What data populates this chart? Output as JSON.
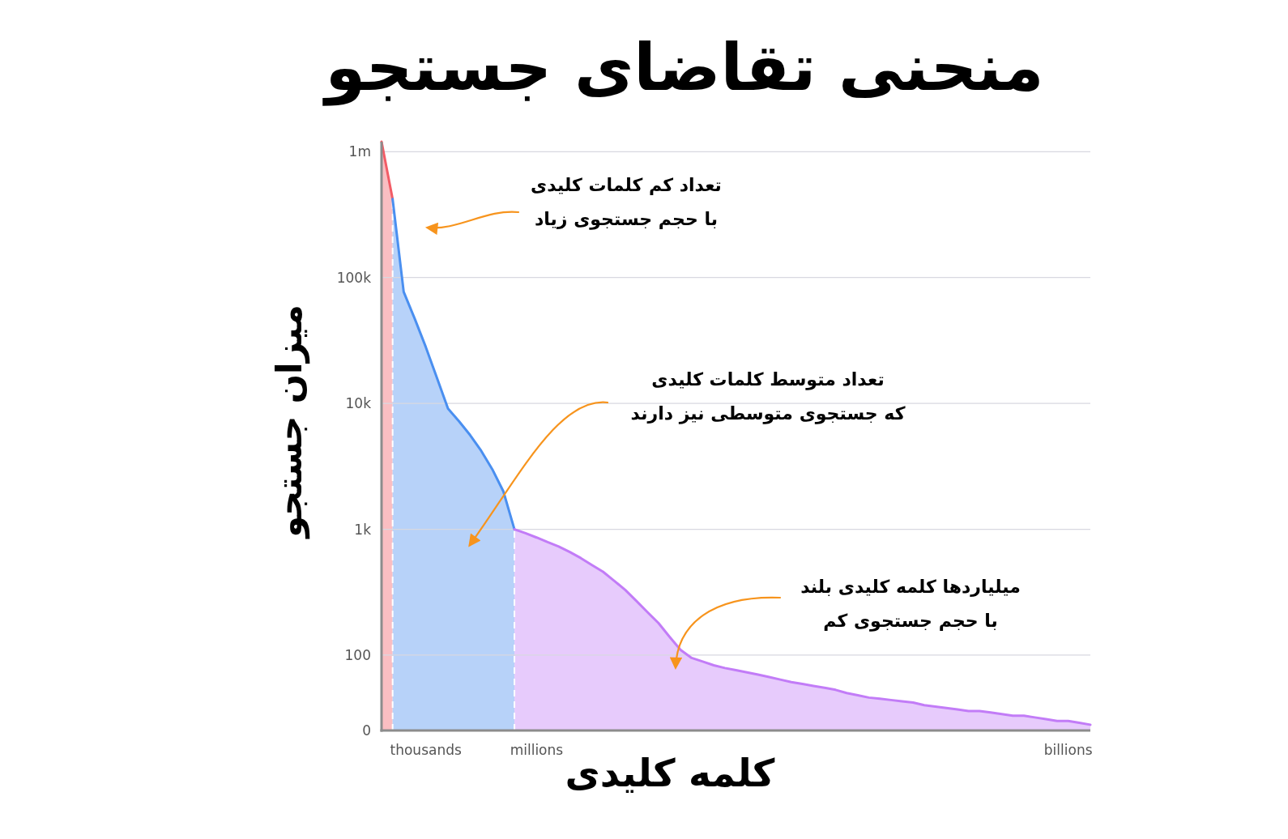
{
  "chart_data": {
    "type": "area",
    "title": "منحنی تقاضای جستجو",
    "xlabel": "کلمه کلیدی",
    "ylabel": "میزان جستجو",
    "categories": [
      null,
      null,
      null,
      null,
      "thousands",
      null,
      null,
      null,
      null,
      null,
      null,
      null,
      null,
      null,
      "millions",
      null,
      null,
      null,
      null,
      null,
      null,
      null,
      null,
      null,
      null,
      null,
      null,
      null,
      null,
      null,
      null,
      null,
      null,
      null,
      null,
      null,
      null,
      null,
      null,
      null,
      null,
      null,
      null,
      null,
      null,
      null,
      null,
      null,
      null,
      null,
      null,
      null,
      null,
      null,
      null,
      null,
      null,
      null,
      null,
      null,
      null,
      null,
      "billions",
      null,
      null
    ],
    "ylim": [
      0,
      1200000
    ],
    "log": true,
    "yticks": [
      0,
      100,
      {
        "value": 1000,
        "label": "1k"
      },
      {
        "value": 10000,
        "label": "10k"
      },
      {
        "value": 100000,
        "label": "100k"
      },
      {
        "value": 1000000,
        "label": "1m"
      }
    ],
    "grid": "y",
    "series": [
      {
        "color": "#f25c66",
        "values": [
          1200000,
          420000,
          null,
          null,
          null,
          null,
          null,
          null,
          null,
          null,
          null,
          null,
          null,
          null,
          null,
          null,
          null,
          null,
          null,
          null,
          null,
          null,
          null,
          null,
          null,
          null,
          null,
          null,
          null,
          null,
          null,
          null,
          null,
          null,
          null,
          null,
          null,
          null,
          null,
          null,
          null,
          null,
          null,
          null,
          null,
          null,
          null,
          null,
          null,
          null,
          null,
          null,
          null,
          null,
          null,
          null,
          null,
          null,
          null,
          null,
          null,
          null,
          null,
          null,
          null
        ]
      },
      {
        "color": "#4a8ff0",
        "values": [
          null,
          420000,
          77000,
          47000,
          28000,
          16000,
          9100,
          7200,
          5600,
          4200,
          3000,
          2000,
          1000,
          null,
          null,
          null,
          null,
          null,
          null,
          null,
          null,
          null,
          null,
          null,
          null,
          null,
          null,
          null,
          null,
          null,
          null,
          null,
          null,
          null,
          null,
          null,
          null,
          null,
          null,
          null,
          null,
          null,
          null,
          null,
          null,
          null,
          null,
          null,
          null,
          null,
          null,
          null,
          null,
          null,
          null,
          null,
          null,
          null,
          null,
          null,
          null,
          null,
          null,
          null,
          null
        ]
      },
      {
        "color": "#c27cf7",
        "values": [
          null,
          null,
          null,
          null,
          null,
          null,
          null,
          null,
          null,
          null,
          null,
          null,
          1000,
          930,
          860,
          790,
          730,
          660,
          590,
          520,
          460,
          390,
          330,
          270,
          220,
          180,
          140,
          110,
          95,
          89,
          83,
          79,
          76,
          73,
          70,
          67,
          64,
          61,
          59,
          57,
          55,
          53,
          50,
          48,
          46,
          45,
          44,
          43,
          42,
          40,
          39,
          38,
          37,
          36,
          36,
          35,
          34,
          33,
          33,
          32,
          31,
          30,
          30,
          29,
          28
        ]
      }
    ],
    "annotations": [
      "تعداد کم کلمات کلیدی\nبا حجم جستجوی زیاد",
      "تعداد متوسط کلمات کلیدی\nکه جستجوی متوسطی نیز دارند",
      "میلیاردها کلمه کلیدی بلند\nبا حجم جستجوی کم"
    ]
  }
}
